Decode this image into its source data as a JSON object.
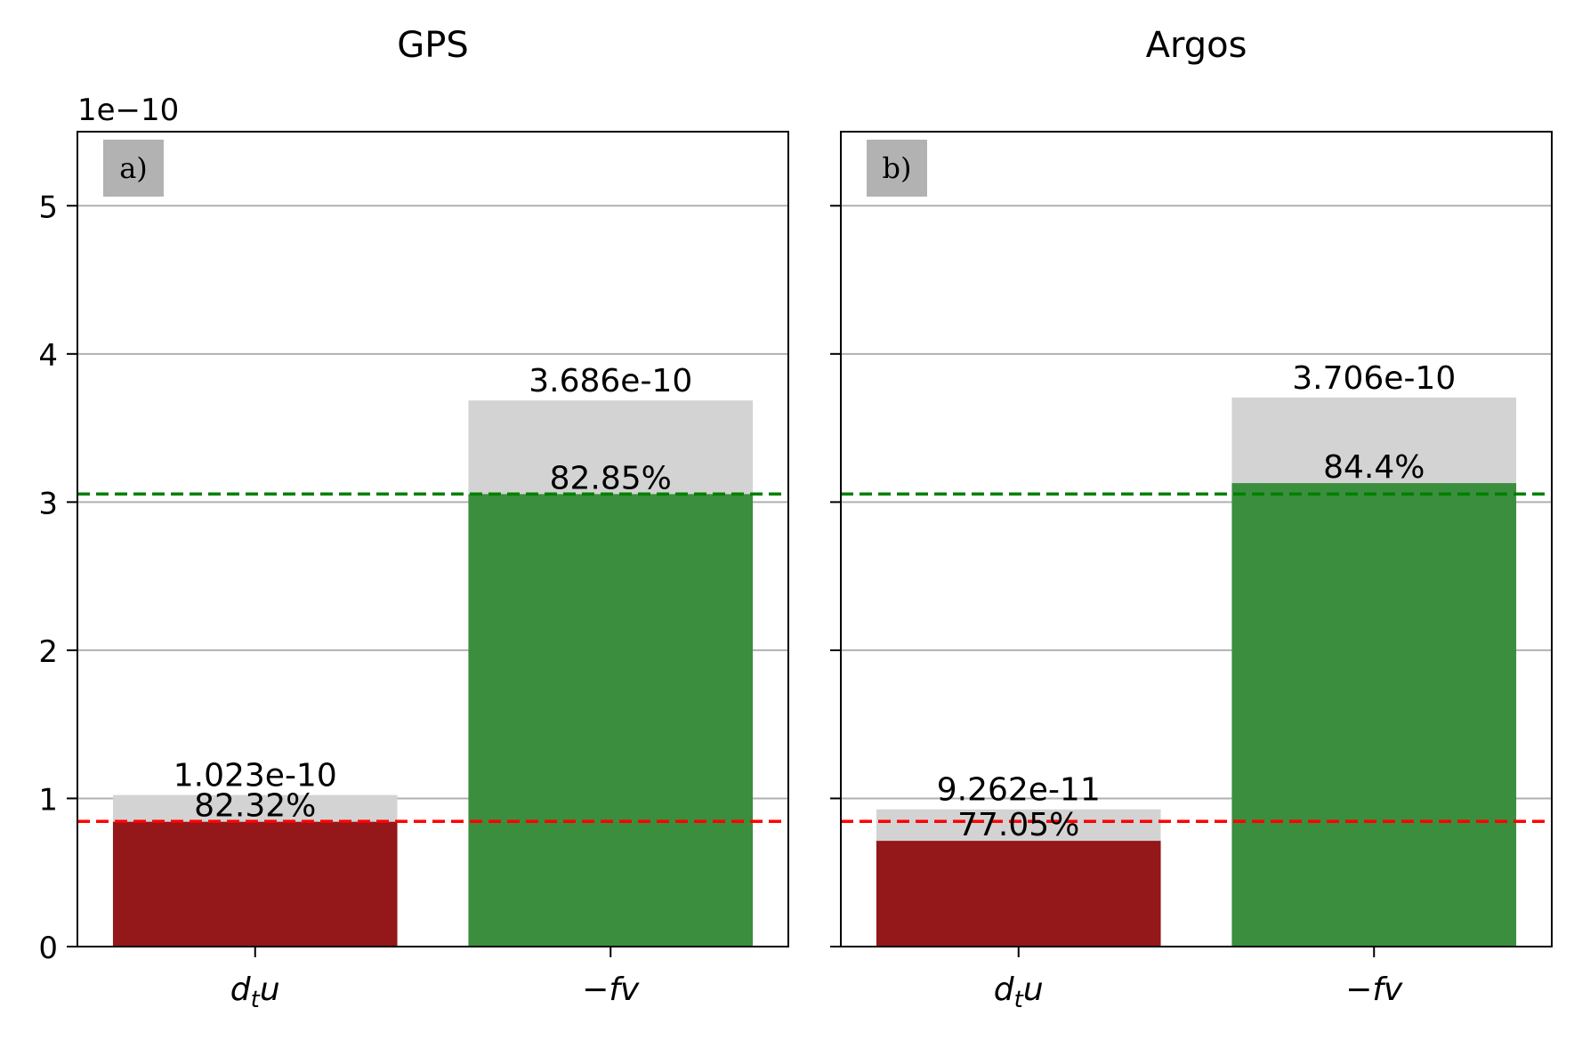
{
  "figure": {
    "offset_text": "1e−10"
  },
  "chart_data": [
    {
      "type": "bar",
      "title": "GPS",
      "panel_label": "a)",
      "categories": [
        "d_t u",
        "−fv"
      ],
      "tick_labels": [
        {
          "main": "d",
          "sub": "t",
          "rest": "u"
        },
        {
          "main": "−fv",
          "sub": "",
          "rest": ""
        }
      ],
      "total_values": [
        1.023e-10,
        3.686e-10
      ],
      "total_labels": [
        "1.023e-10",
        "3.686e-10"
      ],
      "explained_percent": [
        82.32,
        82.85
      ],
      "percent_labels": [
        "82.32%",
        "82.85%"
      ],
      "reference_lines": [
        {
          "value": 8.45e-11,
          "color": "#ff0000",
          "style": "dashed"
        },
        {
          "value": 3.055e-10,
          "color": "#008000",
          "style": "dashed"
        }
      ],
      "ylim": [
        0,
        5.5e-10
      ],
      "yticks": [
        0,
        1e-10,
        2e-10,
        3e-10,
        4e-10,
        5e-10
      ],
      "ytick_labels": [
        "0",
        "1",
        "2",
        "3",
        "4",
        "5"
      ],
      "grid": "y",
      "xlabel": "",
      "ylabel": ""
    },
    {
      "type": "bar",
      "title": "Argos",
      "panel_label": "b)",
      "categories": [
        "d_t u",
        "−fv"
      ],
      "tick_labels": [
        {
          "main": "d",
          "sub": "t",
          "rest": "u"
        },
        {
          "main": "−fv",
          "sub": "",
          "rest": ""
        }
      ],
      "total_values": [
        9.262e-11,
        3.706e-10
      ],
      "total_labels": [
        "9.262e-11",
        "3.706e-10"
      ],
      "explained_percent": [
        77.05,
        84.4
      ],
      "percent_labels": [
        "77.05%",
        "84.4%"
      ],
      "reference_lines": [
        {
          "value": 8.45e-11,
          "color": "#ff0000",
          "style": "dashed"
        },
        {
          "value": 3.055e-10,
          "color": "#008000",
          "style": "dashed"
        }
      ],
      "ylim": [
        0,
        5.5e-10
      ],
      "yticks": [
        0,
        1e-10,
        2e-10,
        3e-10,
        4e-10,
        5e-10
      ],
      "ytick_labels": [
        "",
        "",
        "",
        "",
        "",
        ""
      ],
      "grid": "y",
      "xlabel": "",
      "ylabel": ""
    }
  ],
  "colors": {
    "total_bar": "#d3d3d3",
    "explained_bars": [
      "#941719",
      "#3a8e3e"
    ],
    "grid": "#b0b0b0",
    "panel_label_box": "#b2b2b2"
  }
}
